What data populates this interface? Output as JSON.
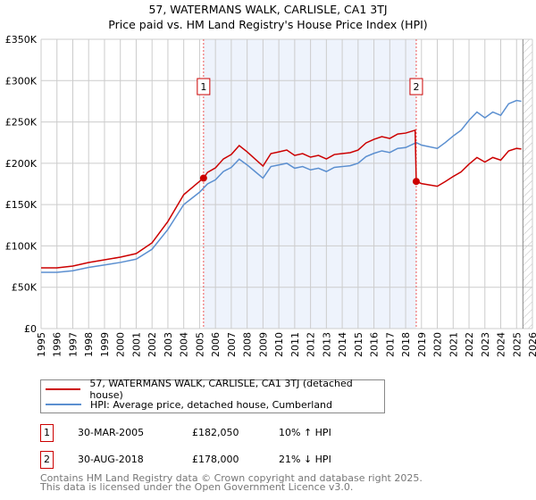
{
  "chart_data": {
    "type": "line",
    "title": "57, WATERMANS WALK, CARLISLE, CA1 3TJ",
    "subtitle": "Price paid vs. HM Land Registry's House Price Index (HPI)",
    "xlabel": "",
    "ylabel": "",
    "xlim": [
      1995,
      2026
    ],
    "ylim": [
      0,
      350000
    ],
    "grid": true,
    "x_ticks": [
      "1995",
      "1996",
      "1997",
      "1998",
      "1999",
      "2000",
      "2001",
      "2002",
      "2003",
      "2004",
      "2005",
      "2006",
      "2007",
      "2008",
      "2009",
      "2010",
      "2011",
      "2012",
      "2013",
      "2014",
      "2015",
      "2016",
      "2017",
      "2018",
      "2019",
      "2020",
      "2021",
      "2022",
      "2023",
      "2024",
      "2025",
      "2026"
    ],
    "y_ticks": [
      {
        "v": 0,
        "label": "£0"
      },
      {
        "v": 50000,
        "label": "£50K"
      },
      {
        "v": 100000,
        "label": "£100K"
      },
      {
        "v": 150000,
        "label": "£150K"
      },
      {
        "v": 200000,
        "label": "£200K"
      },
      {
        "v": 250000,
        "label": "£250K"
      },
      {
        "v": 300000,
        "label": "£300K"
      },
      {
        "v": 350000,
        "label": "£350K"
      }
    ],
    "series": [
      {
        "name": "57, WATERMANS WALK, CARLISLE, CA1 3TJ (detached house)",
        "color": "#cc0000",
        "x": [
          1995,
          1996,
          1997,
          1998,
          1999,
          2000,
          2001,
          2002,
          2003,
          2004,
          2005,
          2005.25,
          2005.5,
          2006,
          2006.5,
          2007,
          2007.5,
          2008,
          2008.5,
          2009,
          2009.5,
          2010,
          2010.5,
          2011,
          2011.5,
          2012,
          2012.5,
          2013,
          2013.5,
          2014,
          2014.5,
          2015,
          2015.5,
          2016,
          2016.5,
          2017,
          2017.5,
          2018,
          2018.6,
          2018.67,
          2019,
          2019.5,
          2020,
          2020.5,
          2021,
          2021.5,
          2022,
          2022.5,
          2023,
          2023.5,
          2024,
          2024.5,
          2025,
          2025.3
        ],
        "y": [
          73400,
          73400,
          75600,
          79900,
          83200,
          86400,
          90700,
          103700,
          129600,
          162000,
          178200,
          182050,
          189000,
          194400,
          205200,
          210600,
          221400,
          213800,
          205200,
          196600,
          211700,
          213800,
          216000,
          209500,
          211700,
          207400,
          209500,
          205200,
          210600,
          211700,
          212800,
          216000,
          224600,
          229000,
          232200,
          230000,
          235400,
          236500,
          240000,
          178000,
          175400,
          173800,
          172200,
          177800,
          184000,
          189600,
          199000,
          207000,
          201500,
          207000,
          203800,
          214900,
          218000,
          217300
        ]
      },
      {
        "name": "HPI: Average price, detached house, Cumberland",
        "color": "#5b8fd0",
        "x": [
          1995,
          1996,
          1997,
          1998,
          1999,
          2000,
          2001,
          2002,
          2003,
          2004,
          2005,
          2005.5,
          2006,
          2006.5,
          2007,
          2007.5,
          2008,
          2008.5,
          2009,
          2009.5,
          2010,
          2010.5,
          2011,
          2011.5,
          2012,
          2012.5,
          2013,
          2013.5,
          2014,
          2014.5,
          2015,
          2015.5,
          2016,
          2016.5,
          2017,
          2017.5,
          2018,
          2018.67,
          2019,
          2019.5,
          2020,
          2020.5,
          2021,
          2021.5,
          2022,
          2022.5,
          2023,
          2023.5,
          2024,
          2024.5,
          2025,
          2025.3
        ],
        "y": [
          68000,
          68000,
          70000,
          74000,
          77000,
          80000,
          84000,
          96000,
          120000,
          150000,
          165000,
          175000,
          180000,
          190000,
          195000,
          205000,
          198000,
          190000,
          182000,
          196000,
          198000,
          200000,
          194000,
          196000,
          192000,
          194000,
          190000,
          195000,
          196000,
          197000,
          200000,
          208000,
          212000,
          215000,
          213000,
          218000,
          219000,
          225000,
          222000,
          220000,
          218000,
          225000,
          233000,
          240000,
          252000,
          262000,
          255000,
          262000,
          258000,
          272000,
          276000,
          275000
        ]
      }
    ],
    "sales": [
      {
        "label": "1",
        "x": 2005.25,
        "y": 182050,
        "date": "30-MAR-2005",
        "price": "£182,050",
        "hpi": "10% ↑ HPI"
      },
      {
        "label": "2",
        "x": 2018.67,
        "y": 178000,
        "date": "30-AUG-2018",
        "price": "£178,000",
        "hpi": "21% ↓ HPI"
      }
    ],
    "shaded_range": [
      2005.25,
      2018.67
    ],
    "hatched_from": 2025.4,
    "legend_placement": "bottom"
  },
  "footer": {
    "line1": "Contains HM Land Registry data © Crown copyright and database right 2025.",
    "line2": "This data is licensed under the Open Government Licence v3.0."
  }
}
